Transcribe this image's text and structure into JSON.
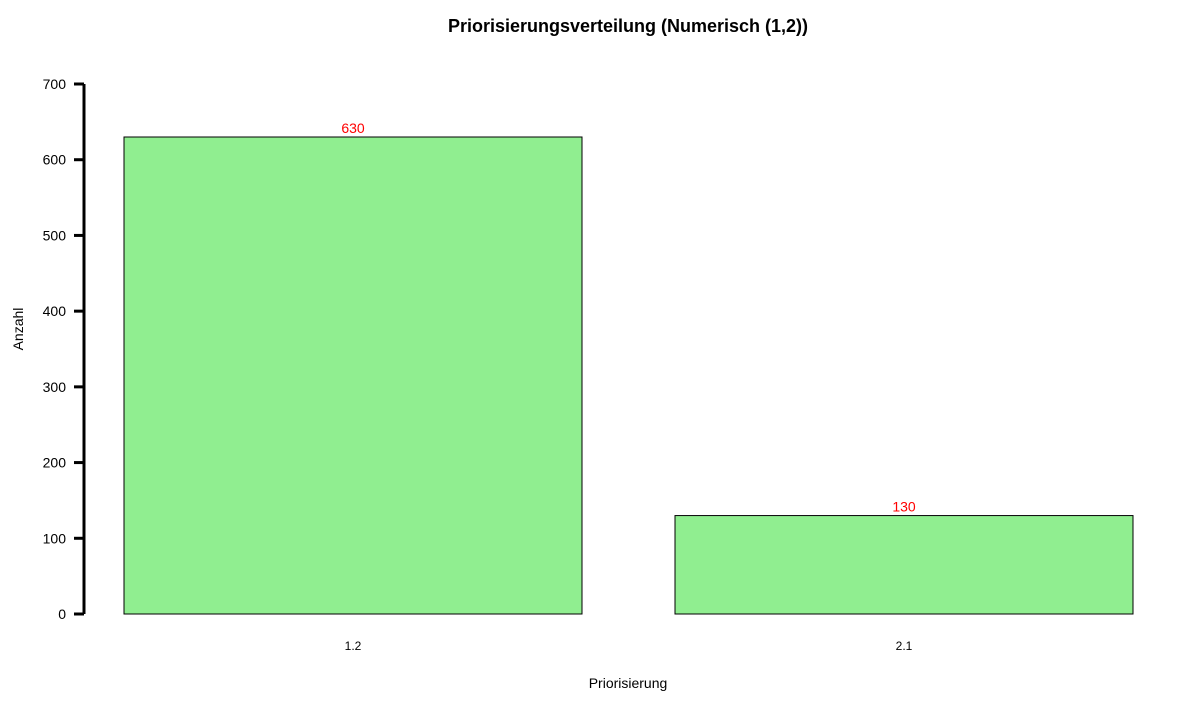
{
  "chart_data": {
    "type": "bar",
    "title": "Priorisierungsverteilung (Numerisch (1,2))",
    "xlabel": "Priorisierung",
    "ylabel": "Anzahl",
    "categories": [
      "1.2",
      "2.1"
    ],
    "values": [
      630,
      130
    ],
    "value_labels": [
      "630",
      "130"
    ],
    "ylim": [
      0,
      700
    ],
    "yticks": [
      0,
      100,
      200,
      300,
      400,
      500,
      600,
      700
    ],
    "ytick_labels": [
      "0",
      "100",
      "200",
      "300",
      "400",
      "500",
      "600",
      "700"
    ],
    "grid": false,
    "legend": "none",
    "colors": {
      "bar_fill": "#90ee90",
      "bar_stroke": "#000000",
      "value_label": "#ff0000",
      "axis": "#000000"
    }
  }
}
